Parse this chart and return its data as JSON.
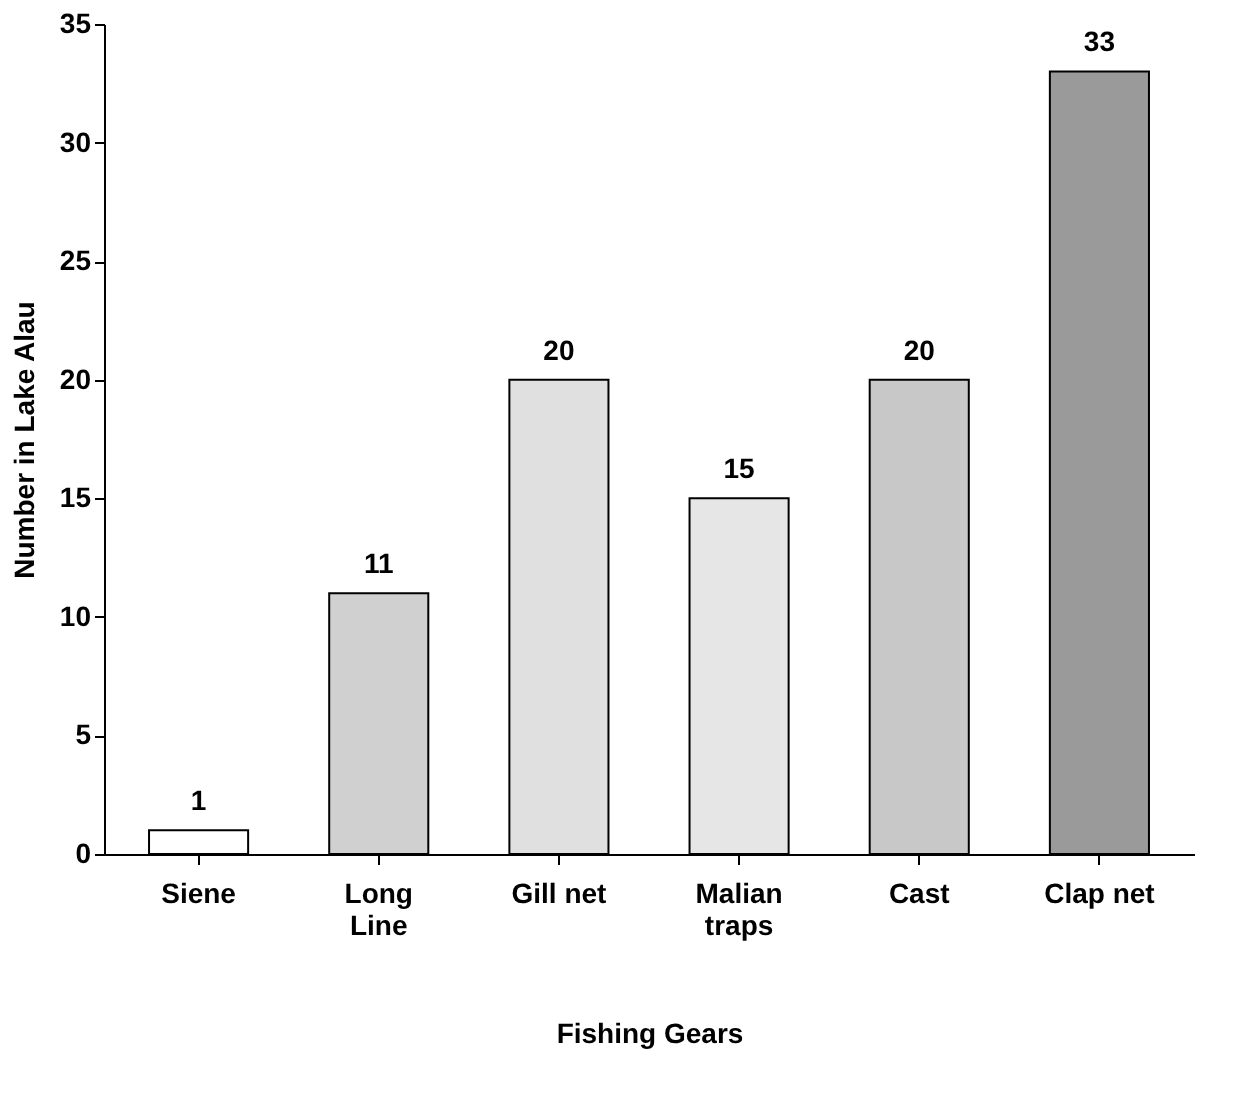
{
  "chart_data": {
    "type": "bar",
    "xlabel": "Fishing Gears",
    "ylabel": "Number in Lake Alau",
    "categories": [
      "Siene",
      "Long Line",
      "Gill net",
      "Malian traps",
      "Cast",
      "Clap net"
    ],
    "values": [
      1,
      11,
      20,
      15,
      20,
      33
    ],
    "colors": [
      "#ffffff",
      "#d0d0d0",
      "#e0e0e0",
      "#e6e6e6",
      "#c8c8c8",
      "#9a9a9a"
    ],
    "ylim": [
      0,
      35
    ],
    "yticks": [
      0,
      5,
      10,
      15,
      20,
      25,
      30,
      35
    ],
    "grid": false,
    "data_labels": true
  }
}
